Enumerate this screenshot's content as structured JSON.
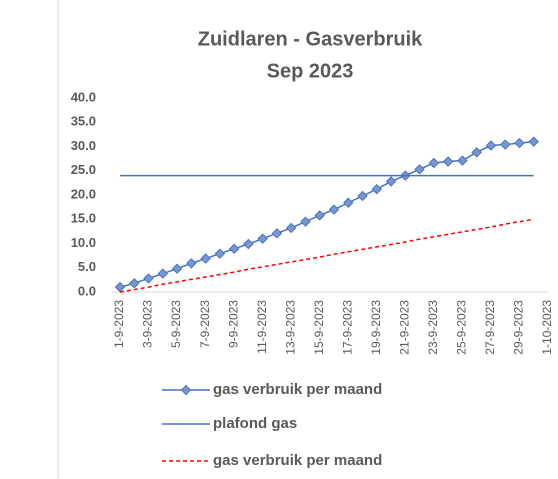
{
  "chart_data": {
    "type": "line",
    "title": "Zuidlaren - Gasverbruik",
    "subtitle": "Sep 2023",
    "categories": [
      "1-9-2023",
      null,
      "3-9-2023",
      null,
      "5-9-2023",
      null,
      "7-9-2023",
      null,
      "9-9-2023",
      null,
      "11-9-2023",
      null,
      "13-9-2023",
      null,
      "15-9-2023",
      null,
      "17-9-2023",
      null,
      "19-9-2023",
      null,
      "21-9-2023",
      null,
      "23-9-2023",
      null,
      "25-9-2023",
      null,
      "27-9-2023",
      null,
      "29-9-2023",
      null,
      "1-10-2023"
    ],
    "series": [
      {
        "name": "gas verbruik per maand",
        "color": "#4472c4",
        "marker_color": "#7b96cc",
        "marker": "diamond",
        "values": [
          1.0,
          1.8,
          2.8,
          3.8,
          4.8,
          5.9,
          6.9,
          7.9,
          8.9,
          9.9,
          11.0,
          12.1,
          13.2,
          14.5,
          15.8,
          17.0,
          18.4,
          19.8,
          21.2,
          22.8,
          24.0,
          25.3,
          26.6,
          26.9,
          27.1,
          28.8,
          30.2,
          30.4,
          30.7,
          31.0,
          null
        ]
      },
      {
        "name": "plafond gas",
        "color": "#4472c4",
        "values": [
          24,
          24,
          24,
          24,
          24,
          24,
          24,
          24,
          24,
          24,
          24,
          24,
          24,
          24,
          24,
          24,
          24,
          24,
          24,
          24,
          24,
          24,
          24,
          24,
          24,
          24,
          24,
          24,
          24,
          24,
          null
        ]
      },
      {
        "name": "gas verbruik per maand",
        "color": "#ff0000",
        "dashed": true,
        "values": [
          0.0,
          0.5,
          1.0,
          1.6,
          2.1,
          2.6,
          3.1,
          3.6,
          4.1,
          4.7,
          5.2,
          5.7,
          6.2,
          6.7,
          7.2,
          7.8,
          8.3,
          8.8,
          9.3,
          9.8,
          10.3,
          10.9,
          11.4,
          11.9,
          12.4,
          12.9,
          13.4,
          14.0,
          14.5,
          15.0,
          null
        ]
      }
    ],
    "ylim": [
      0,
      40
    ],
    "yticks": [
      {
        "value": 0,
        "label": "0.0"
      },
      {
        "value": 5,
        "label": "5.0"
      },
      {
        "value": 10,
        "label": "10.0"
      },
      {
        "value": 15,
        "label": "15.0"
      },
      {
        "value": 20,
        "label": "20.0"
      },
      {
        "value": 25,
        "label": "25.0"
      },
      {
        "value": 30,
        "label": "30.0"
      },
      {
        "value": 35,
        "label": "35.0"
      },
      {
        "value": 40,
        "label": "40.0"
      }
    ],
    "grid": false,
    "legend": "bottom"
  }
}
